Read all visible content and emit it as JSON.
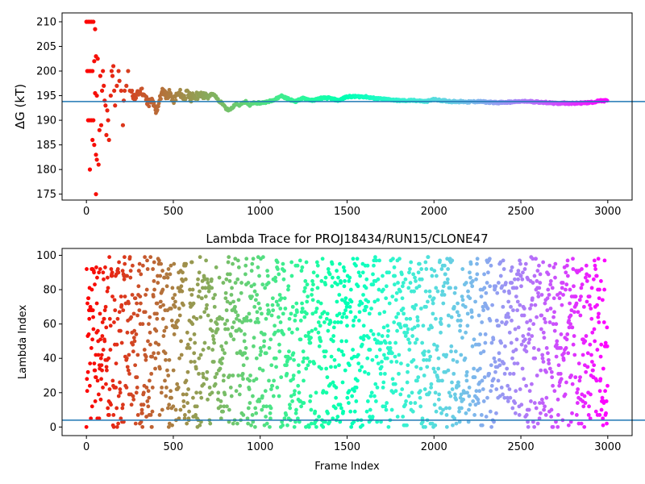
{
  "chart_data": [
    {
      "type": "scatter",
      "title": "",
      "xlabel": "",
      "ylabel": "ΔG (kT)",
      "xlim": [
        -140,
        3140
      ],
      "ylim": [
        173.8,
        211.8
      ],
      "xticks": [
        0,
        500,
        1000,
        1500,
        2000,
        2500,
        3000
      ],
      "yticks": [
        175,
        180,
        185,
        190,
        195,
        200,
        205,
        210
      ],
      "colormap": "rainbow (color by frame index, red at 0 to violet at 3000)",
      "reference_line": {
        "y": 193.8,
        "color": "#1f77b4"
      },
      "points": [
        [
          0,
          210
        ],
        [
          10,
          210
        ],
        [
          20,
          210
        ],
        [
          30,
          210
        ],
        [
          40,
          210
        ],
        [
          5,
          200
        ],
        [
          15,
          200
        ],
        [
          25,
          200
        ],
        [
          35,
          200
        ],
        [
          10,
          190
        ],
        [
          20,
          190
        ],
        [
          30,
          190
        ],
        [
          50,
          208.5
        ],
        [
          45,
          202
        ],
        [
          55,
          203
        ],
        [
          65,
          202.5
        ],
        [
          60,
          195
        ],
        [
          50,
          195.5
        ],
        [
          40,
          190
        ],
        [
          35,
          186
        ],
        [
          45,
          185
        ],
        [
          55,
          183
        ],
        [
          20,
          180
        ],
        [
          55,
          175
        ],
        [
          60,
          182
        ],
        [
          70,
          181
        ],
        [
          75,
          188
        ],
        [
          85,
          189
        ],
        [
          80,
          199
        ],
        [
          95,
          200
        ],
        [
          100,
          197
        ],
        [
          90,
          196
        ],
        [
          105,
          194
        ],
        [
          110,
          193
        ],
        [
          120,
          192
        ],
        [
          115,
          187
        ],
        [
          130,
          186
        ],
        [
          125,
          190
        ],
        [
          140,
          195
        ],
        [
          145,
          200
        ],
        [
          150,
          199
        ],
        [
          155,
          201
        ],
        [
          160,
          196
        ],
        [
          165,
          193
        ],
        [
          175,
          197
        ],
        [
          185,
          200
        ],
        [
          190,
          198
        ],
        [
          200,
          196
        ],
        [
          210,
          189
        ],
        [
          215,
          194
        ],
        [
          220,
          196
        ],
        [
          230,
          197
        ],
        [
          240,
          200
        ],
        [
          250,
          196
        ]
      ],
      "trace": [
        [
          260,
          195.5
        ],
        [
          280,
          194.5
        ],
        [
          300,
          195.5
        ],
        [
          320,
          196
        ],
        [
          340,
          194.5
        ],
        [
          360,
          193.5
        ],
        [
          380,
          194
        ],
        [
          400,
          191.5
        ],
        [
          420,
          194
        ],
        [
          440,
          196
        ],
        [
          460,
          195
        ],
        [
          480,
          195.5
        ],
        [
          500,
          194
        ],
        [
          520,
          195
        ],
        [
          540,
          195.5
        ],
        [
          560,
          194.5
        ],
        [
          580,
          195.5
        ],
        [
          600,
          194.5
        ],
        [
          620,
          195
        ],
        [
          640,
          195
        ],
        [
          660,
          195
        ],
        [
          680,
          195
        ],
        [
          700,
          194.5
        ],
        [
          720,
          195.5
        ],
        [
          740,
          195
        ],
        [
          760,
          194
        ],
        [
          780,
          193.5
        ],
        [
          800,
          192.5
        ],
        [
          820,
          192
        ],
        [
          840,
          192.5
        ],
        [
          860,
          193.5
        ],
        [
          880,
          193
        ],
        [
          900,
          193.5
        ],
        [
          920,
          193.8
        ],
        [
          940,
          193
        ],
        [
          960,
          193.5
        ],
        [
          980,
          193.5
        ],
        [
          1000,
          193.5
        ],
        [
          1050,
          193.8
        ],
        [
          1100,
          194.5
        ],
        [
          1120,
          195
        ],
        [
          1150,
          194.5
        ],
        [
          1200,
          193.8
        ],
        [
          1250,
          194.5
        ],
        [
          1300,
          194
        ],
        [
          1350,
          194.5
        ],
        [
          1400,
          194.5
        ],
        [
          1450,
          194
        ],
        [
          1500,
          194.8
        ],
        [
          1550,
          194.8
        ],
        [
          1600,
          194.8
        ],
        [
          1650,
          194.5
        ],
        [
          1700,
          194.3
        ],
        [
          1750,
          194.2
        ],
        [
          1800,
          194
        ],
        [
          1850,
          194
        ],
        [
          1900,
          194
        ],
        [
          1950,
          193.8
        ],
        [
          2000,
          194.2
        ],
        [
          2050,
          194
        ],
        [
          2100,
          193.8
        ],
        [
          2150,
          193.8
        ],
        [
          2200,
          193.7
        ],
        [
          2250,
          193.8
        ],
        [
          2300,
          193.7
        ],
        [
          2350,
          193.6
        ],
        [
          2400,
          193.6
        ],
        [
          2450,
          193.7
        ],
        [
          2500,
          193.8
        ],
        [
          2550,
          193.8
        ],
        [
          2600,
          193.7
        ],
        [
          2650,
          193.6
        ],
        [
          2700,
          193.4
        ],
        [
          2750,
          193.5
        ],
        [
          2800,
          193.4
        ],
        [
          2850,
          193.5
        ],
        [
          2900,
          193.6
        ],
        [
          2950,
          193.9
        ],
        [
          3000,
          194
        ]
      ]
    },
    {
      "type": "scatter",
      "title": "Lambda Trace for PROJ18434/RUN15/CLONE47",
      "xlabel": "Frame Index",
      "ylabel": "Lambda Index",
      "xlim": [
        -140,
        3140
      ],
      "ylim": [
        -5,
        104
      ],
      "xticks": [
        0,
        500,
        1000,
        1500,
        2000,
        2500,
        3000
      ],
      "yticks": [
        0,
        20,
        40,
        60,
        80,
        100
      ],
      "colormap": "rainbow (color by frame index, red at 0 to violet at 3000)",
      "reference_line": {
        "y": 4,
        "color": "#1f77b4"
      },
      "description": "lambda index hops uniformly between 0 and 99 across 3000 frames"
    }
  ]
}
